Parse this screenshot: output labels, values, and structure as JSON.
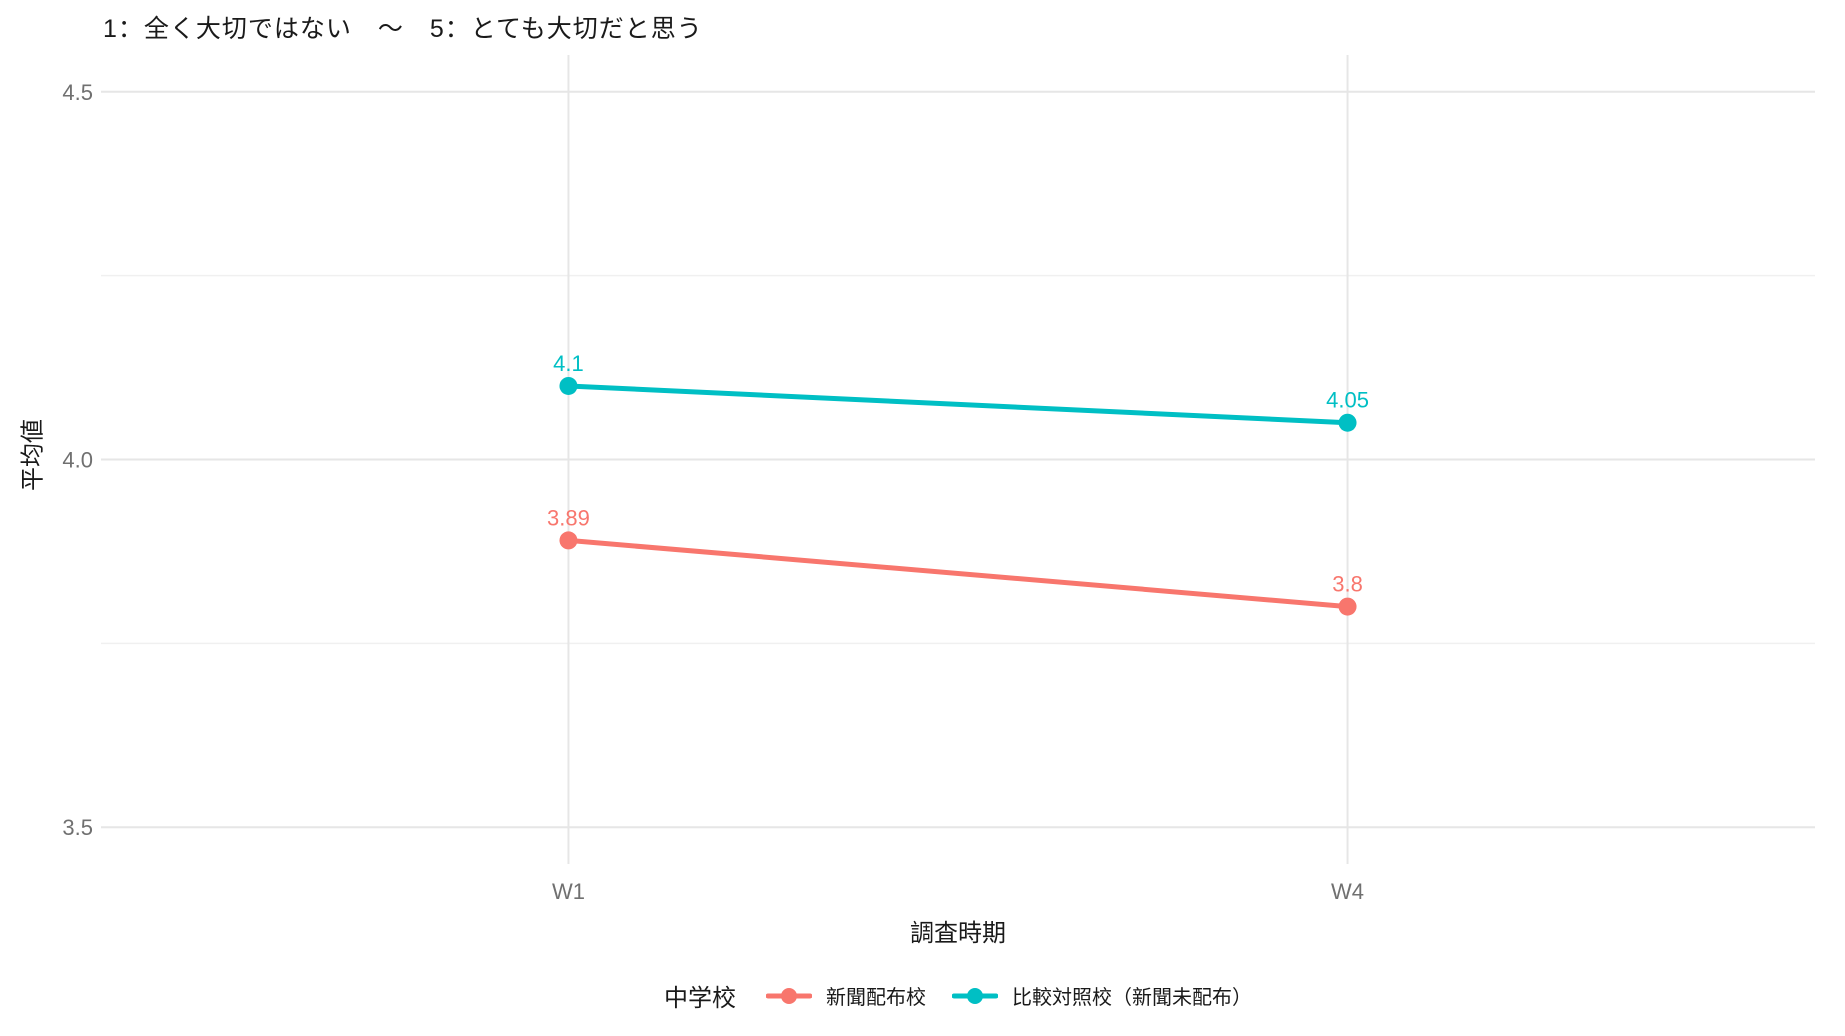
{
  "chart_data": {
    "type": "line",
    "title": "1：全く大切ではない　〜　5：とても大切だと思う",
    "xlabel": "調査時期",
    "ylabel": "平均値",
    "legend_title": "中学校",
    "legend_position": "bottom",
    "categories": [
      "W1",
      "W4"
    ],
    "series": [
      {
        "name": "新聞配布校",
        "color": "#F8766D",
        "values": [
          3.89,
          3.8
        ],
        "point_labels": [
          "3.89",
          "3.8"
        ]
      },
      {
        "name": "比較対照校（新聞未配布）",
        "color": "#00BFC4",
        "values": [
          4.1,
          4.05
        ],
        "point_labels": [
          "4.1",
          "4.05"
        ]
      }
    ],
    "ylim": [
      3.45,
      4.55
    ],
    "yticks": [
      3.5,
      4.0,
      4.5
    ],
    "ytick_labels": [
      "3.5",
      "4.0",
      "4.5"
    ],
    "minor_yticks": [
      3.75,
      4.25
    ],
    "grid": true,
    "colors": {
      "grid_major": "#E6E6E6",
      "grid_minor": "#F0F0F0",
      "tick_text": "#707070",
      "text": "#1A1A1A",
      "background": "#FFFFFF"
    }
  }
}
